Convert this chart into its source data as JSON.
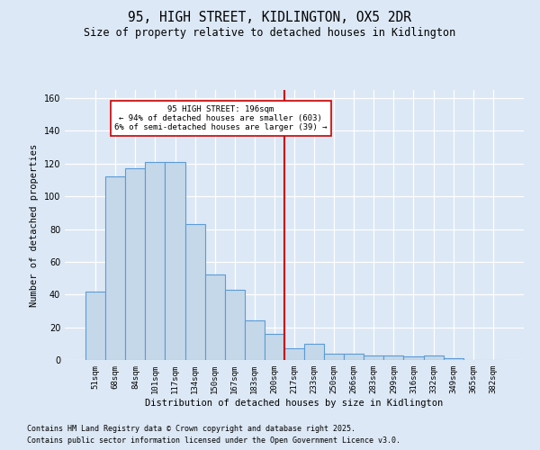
{
  "title": "95, HIGH STREET, KIDLINGTON, OX5 2DR",
  "subtitle": "Size of property relative to detached houses in Kidlington",
  "xlabel": "Distribution of detached houses by size in Kidlington",
  "ylabel": "Number of detached properties",
  "categories": [
    "51sqm",
    "68sqm",
    "84sqm",
    "101sqm",
    "117sqm",
    "134sqm",
    "150sqm",
    "167sqm",
    "183sqm",
    "200sqm",
    "217sqm",
    "233sqm",
    "250sqm",
    "266sqm",
    "283sqm",
    "299sqm",
    "316sqm",
    "332sqm",
    "349sqm",
    "365sqm",
    "382sqm"
  ],
  "bar_heights": [
    42,
    112,
    117,
    121,
    121,
    83,
    52,
    43,
    24,
    16,
    7,
    10,
    4,
    4,
    3,
    3,
    2,
    3,
    1,
    0,
    0
  ],
  "bar_color": "#c5d8ea",
  "bar_edge_color": "#5b9bd5",
  "vline_color": "#cc0000",
  "annotation_text": "95 HIGH STREET: 196sqm\n← 94% of detached houses are smaller (603)\n6% of semi-detached houses are larger (39) →",
  "ylim_max": 165,
  "yticks": [
    0,
    20,
    40,
    60,
    80,
    100,
    120,
    140,
    160
  ],
  "bg_color": "#dce8f5",
  "footer_line1": "Contains HM Land Registry data © Crown copyright and database right 2025.",
  "footer_line2": "Contains public sector information licensed under the Open Government Licence v3.0."
}
